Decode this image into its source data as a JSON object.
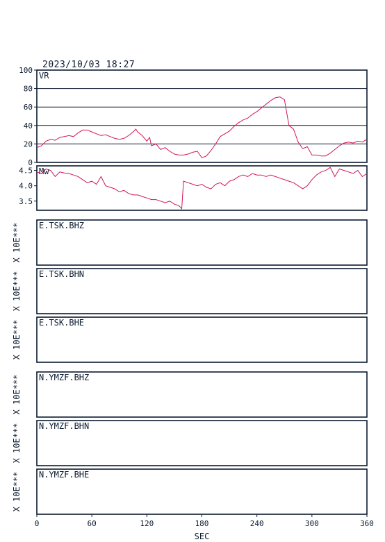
{
  "header": {
    "datetime": "2023/10/03  18:27"
  },
  "colors": {
    "series": "#d4145a",
    "frame": "#0b1a2e",
    "background": "#ffffff"
  },
  "chart_data": [
    {
      "type": "line",
      "name": "vr",
      "title": "VR",
      "ylim": [
        0,
        100
      ],
      "yticks": [
        "0",
        "20",
        "40",
        "60",
        "80",
        "100"
      ],
      "ytick_values": [
        0,
        20,
        40,
        60,
        80,
        100
      ],
      "grid": true,
      "x": [
        0,
        5,
        10,
        15,
        20,
        25,
        30,
        35,
        40,
        45,
        50,
        55,
        60,
        65,
        70,
        75,
        80,
        85,
        90,
        95,
        100,
        105,
        108,
        110,
        115,
        120,
        123,
        125,
        130,
        135,
        140,
        145,
        150,
        155,
        160,
        165,
        170,
        175,
        180,
        185,
        190,
        195,
        200,
        205,
        210,
        215,
        220,
        225,
        230,
        235,
        240,
        245,
        250,
        255,
        260,
        265,
        270,
        275,
        280,
        285,
        290,
        295,
        300,
        305,
        310,
        315,
        320,
        325,
        330,
        335,
        340,
        345,
        350,
        355,
        360
      ],
      "y": [
        16,
        18,
        23,
        25,
        24,
        27,
        28,
        29,
        28,
        32,
        35,
        35,
        33,
        31,
        29,
        30,
        28,
        26,
        25,
        26,
        29,
        33,
        36,
        33,
        29,
        23,
        27,
        18,
        20,
        14,
        16,
        12,
        9,
        8,
        8,
        9,
        11,
        12,
        5,
        7,
        13,
        20,
        28,
        31,
        34,
        39,
        43,
        46,
        48,
        52,
        55,
        59,
        63,
        67,
        70,
        71,
        68,
        40,
        36,
        22,
        15,
        17,
        8,
        8,
        7,
        7,
        10,
        14,
        18,
        21,
        22,
        21,
        23,
        22,
        25
      ]
    },
    {
      "type": "line",
      "name": "mw",
      "title": "Mw",
      "ylim": [
        3.2,
        4.65
      ],
      "yticks": [
        "3.5",
        "4.0",
        "4.5"
      ],
      "ytick_values": [
        3.5,
        4.0,
        4.5
      ],
      "grid": false,
      "x": [
        0,
        5,
        10,
        15,
        20,
        25,
        30,
        35,
        40,
        45,
        50,
        55,
        60,
        65,
        70,
        75,
        80,
        85,
        90,
        95,
        100,
        105,
        110,
        115,
        120,
        125,
        130,
        135,
        140,
        145,
        150,
        155,
        158,
        160,
        165,
        170,
        175,
        180,
        185,
        190,
        195,
        200,
        205,
        210,
        215,
        220,
        225,
        230,
        235,
        240,
        245,
        250,
        255,
        260,
        265,
        270,
        275,
        280,
        285,
        290,
        295,
        300,
        305,
        310,
        315,
        320,
        325,
        330,
        335,
        340,
        345,
        350,
        355,
        360
      ],
      "y": [
        4.45,
        4.4,
        4.55,
        4.5,
        4.3,
        4.45,
        4.42,
        4.4,
        4.35,
        4.3,
        4.2,
        4.1,
        4.15,
        4.05,
        4.3,
        4.0,
        3.95,
        3.9,
        3.8,
        3.85,
        3.75,
        3.7,
        3.7,
        3.65,
        3.6,
        3.55,
        3.55,
        3.5,
        3.45,
        3.5,
        3.4,
        3.35,
        3.25,
        4.15,
        4.1,
        4.05,
        4.0,
        4.05,
        3.95,
        3.9,
        4.05,
        4.1,
        4.0,
        4.15,
        4.2,
        4.3,
        4.35,
        4.3,
        4.4,
        4.35,
        4.35,
        4.3,
        4.35,
        4.3,
        4.25,
        4.2,
        4.15,
        4.1,
        4.0,
        3.9,
        4.0,
        4.2,
        4.35,
        4.45,
        4.5,
        4.6,
        4.3,
        4.55,
        4.5,
        4.45,
        4.4,
        4.5,
        4.3,
        4.4
      ]
    }
  ],
  "waveforms": [
    {
      "station": "E.TSK.BHZ",
      "scale": "X 10E***"
    },
    {
      "station": "E.TSK.BHN",
      "scale": "X 10E***"
    },
    {
      "station": "E.TSK.BHE",
      "scale": "X 10E***"
    },
    {
      "station": "N.YMZF.BHZ",
      "scale": "X 10E***"
    },
    {
      "station": "N.YMZF.BHN",
      "scale": "X 10E***"
    },
    {
      "station": "N.YMZF.BHE",
      "scale": "X 10E***"
    }
  ],
  "x_axis": {
    "label": "SEC",
    "xlim": [
      0,
      360
    ],
    "ticks": [
      "0",
      "60",
      "120",
      "180",
      "240",
      "300",
      "360"
    ],
    "tick_values": [
      0,
      60,
      120,
      180,
      240,
      300,
      360
    ]
  }
}
